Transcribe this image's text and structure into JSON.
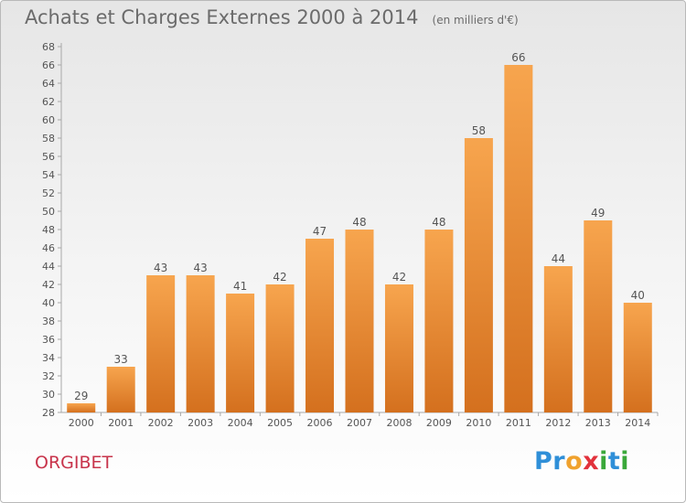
{
  "header": {
    "title": "Achats et Charges Externes 2000 à 2014",
    "unit": "(en milliers d'€)"
  },
  "footer": {
    "commune": "ORGIBET",
    "brand_letters": [
      {
        "ch": "P",
        "color": "#2f8fd8"
      },
      {
        "ch": "r",
        "color": "#2f8fd8"
      },
      {
        "ch": "o",
        "color": "#f0a22e"
      },
      {
        "ch": "x",
        "color": "#e2323c"
      },
      {
        "ch": "i",
        "color": "#3aa83a"
      },
      {
        "ch": "t",
        "color": "#2f8fd8"
      },
      {
        "ch": "i",
        "color": "#3aa83a"
      }
    ]
  },
  "chart_data": {
    "type": "bar",
    "categories": [
      "2000",
      "2001",
      "2002",
      "2003",
      "2004",
      "2005",
      "2006",
      "2007",
      "2008",
      "2009",
      "2010",
      "2011",
      "2012",
      "2013",
      "2014"
    ],
    "values": [
      29,
      33,
      43,
      43,
      41,
      42,
      47,
      48,
      42,
      48,
      58,
      66,
      44,
      49,
      40
    ],
    "ylim": [
      28,
      68
    ],
    "ytick_step": 2,
    "grid": false,
    "bar_color_top": "#f7a54e",
    "bar_color_bottom": "#d4701e",
    "label_color": "#555555"
  }
}
